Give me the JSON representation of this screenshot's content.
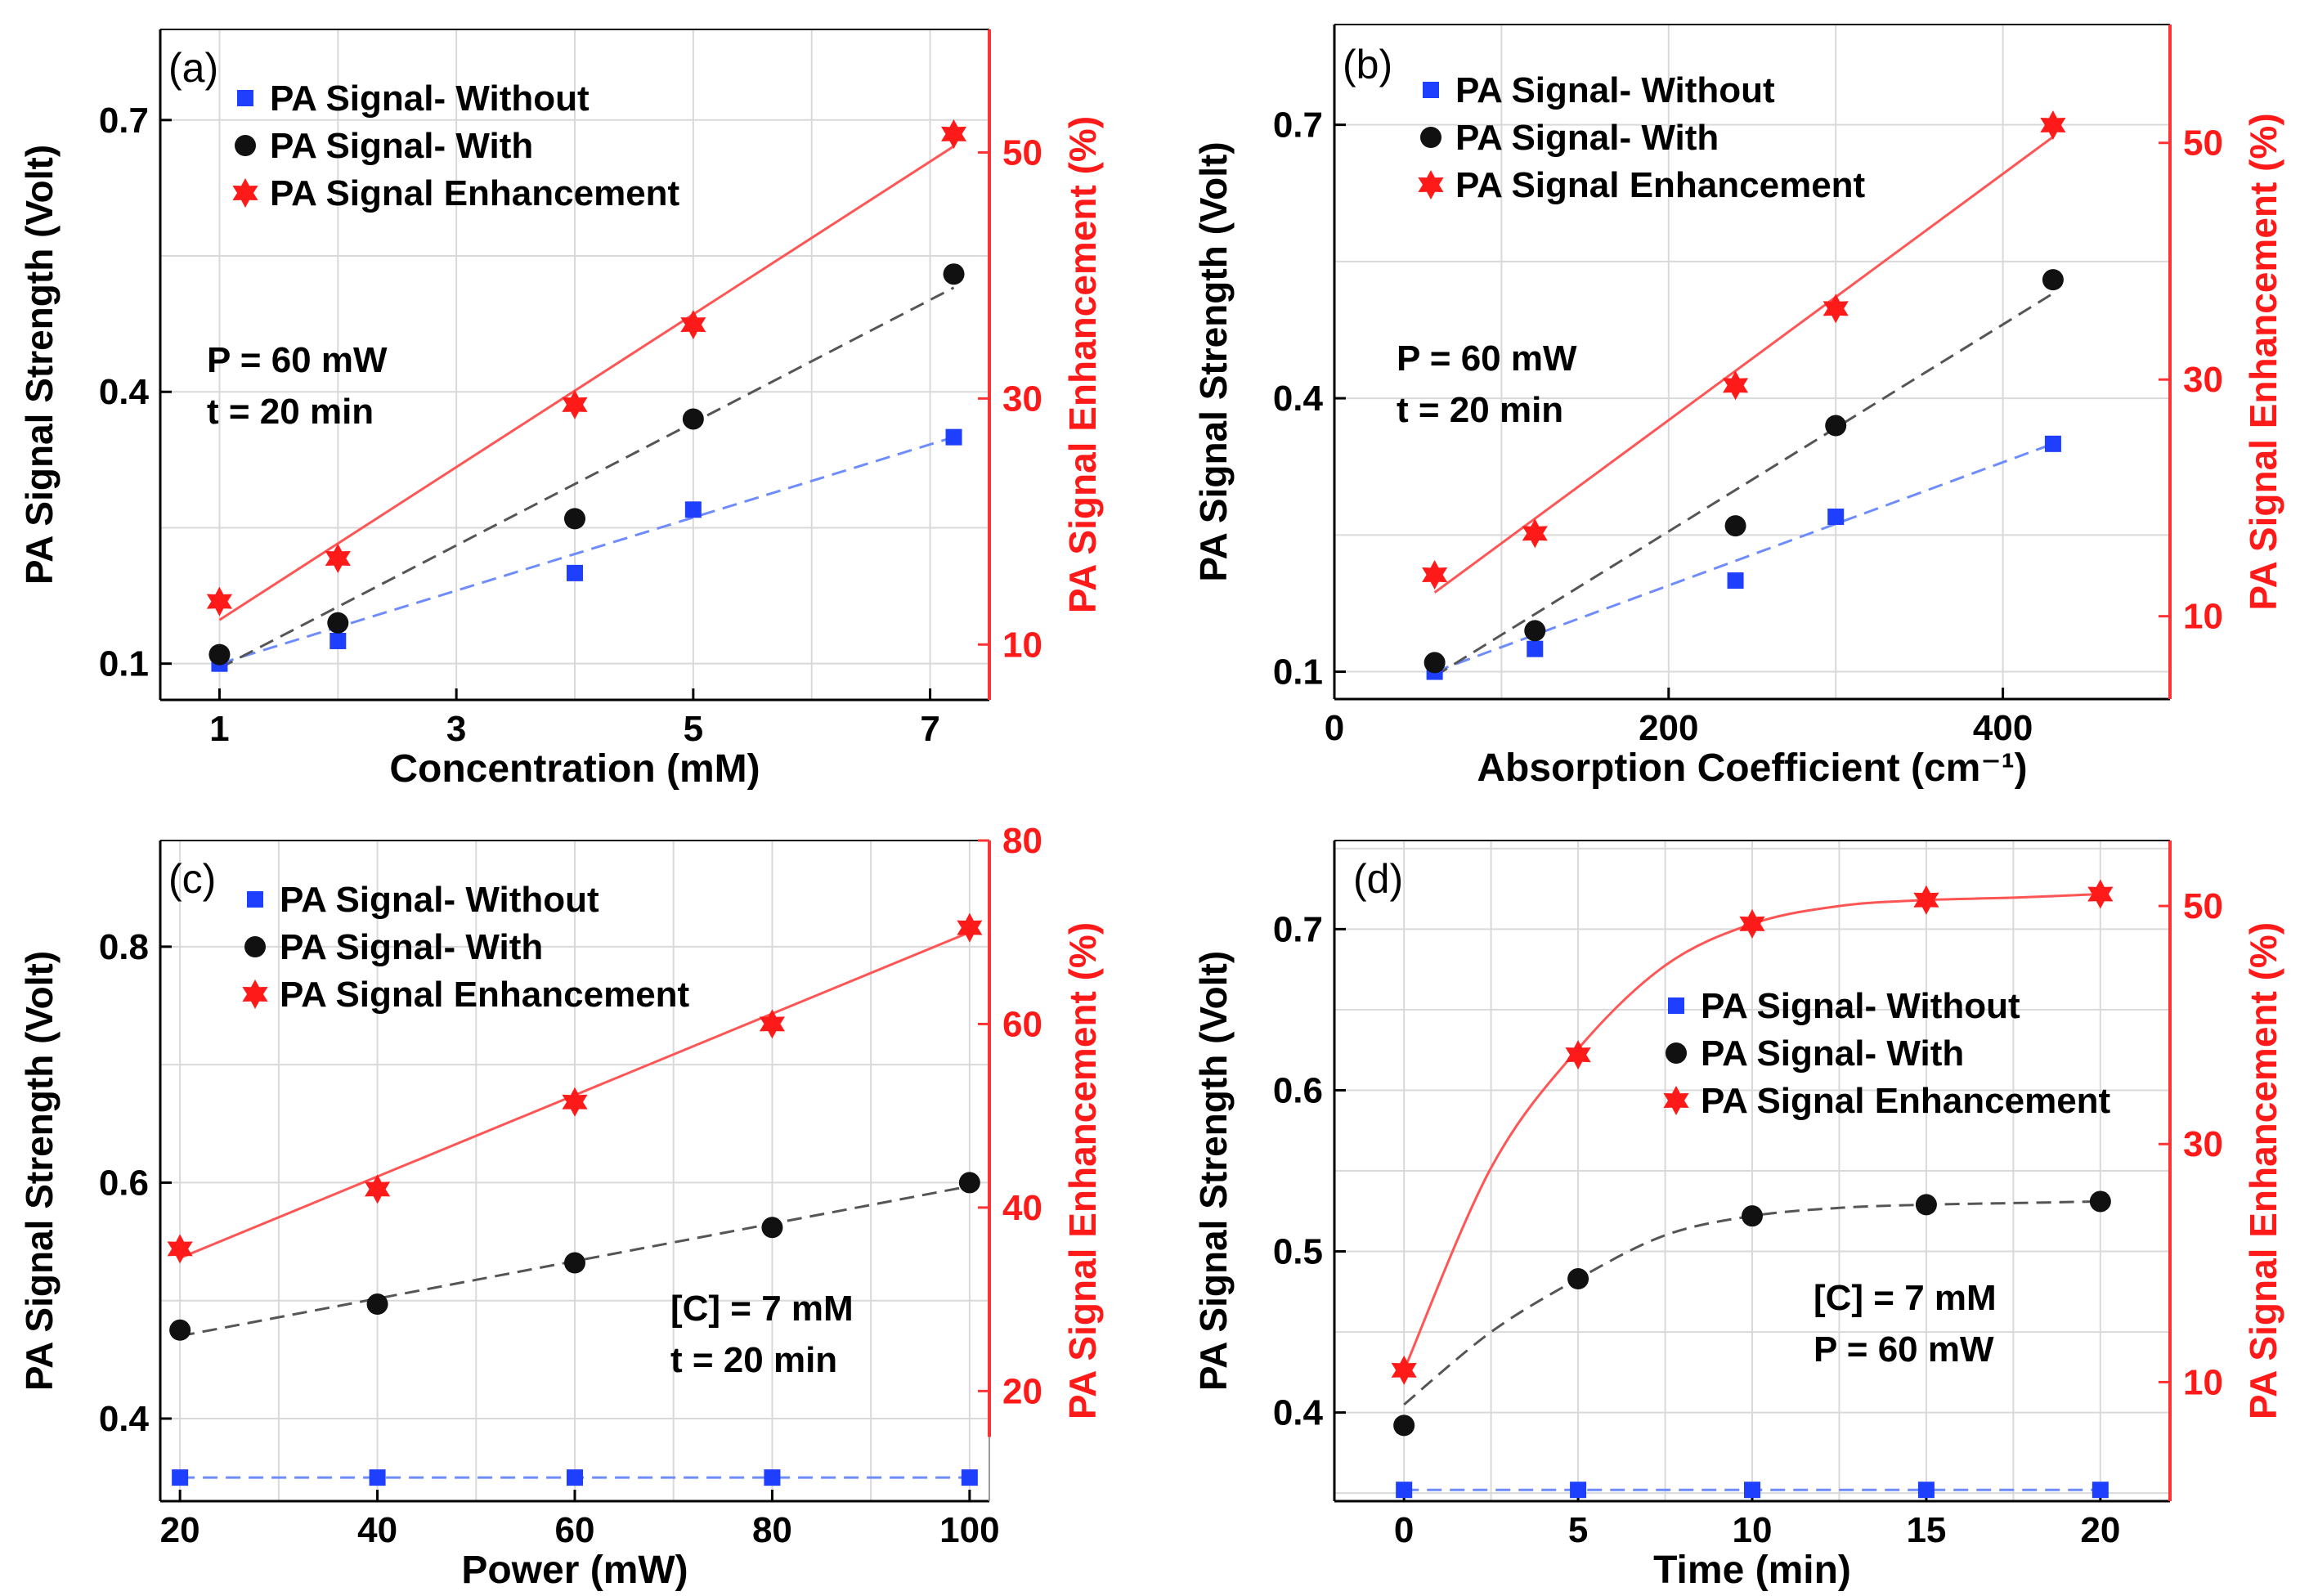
{
  "colors": {
    "without": "#1f3fff",
    "with": "#111111",
    "enhancement": "#ff1a1a",
    "axis": "#000000",
    "grid": "#d9d9d9",
    "right_axis": "#ff3333",
    "without_fit": "#6f8cff",
    "with_fit": "#555555",
    "enh_fit": "#ff5555"
  },
  "chart_data": [
    {
      "type": "scatter",
      "panel_label": "(a)",
      "xlabel": "Concentration (mM)",
      "ylabel": "PA Signal Strength (Volt)",
      "y2label": "PA Signal Enhancement (%)",
      "xlim": [
        0.5,
        7.5
      ],
      "ylim": [
        0.06,
        0.8
      ],
      "y2lim": [
        5.5,
        60
      ],
      "xticks": [
        1,
        3,
        5,
        7
      ],
      "xtick_labels": [
        "1",
        "3",
        "5",
        "7"
      ],
      "yticks": [
        0.1,
        0.4,
        0.7
      ],
      "ytick_labels": [
        "0.1",
        "0.4",
        "0.7"
      ],
      "y2ticks": [
        10,
        30,
        50
      ],
      "y2tick_labels": [
        "10",
        "30",
        "50"
      ],
      "y2_color_range": [
        5.5,
        60
      ],
      "annotation": [
        "P = 60 mW",
        "t = 20 min"
      ],
      "legend": [
        "PA Signal- Without",
        "PA Signal- With",
        "PA Signal Enhancement"
      ],
      "legend_position": "top-left",
      "series": [
        {
          "name": "PA Signal- Without",
          "axis": "left",
          "marker": "square",
          "x": [
            1,
            2,
            4,
            5,
            7.2
          ],
          "values": [
            0.1,
            0.125,
            0.2,
            0.27,
            0.35
          ]
        },
        {
          "name": "PA Signal- With",
          "axis": "left",
          "marker": "circle",
          "x": [
            1,
            2,
            4,
            5,
            7.2
          ],
          "values": [
            0.11,
            0.145,
            0.26,
            0.37,
            0.53
          ]
        },
        {
          "name": "PA Signal Enhancement",
          "axis": "right",
          "marker": "star",
          "x": [
            1,
            2,
            4,
            5,
            7.2
          ],
          "values": [
            13.5,
            17,
            29.5,
            36,
            51.5
          ]
        }
      ],
      "fits": [
        {
          "series": "PA Signal- Without",
          "axis": "left",
          "style": "dashed",
          "x": [
            1,
            7.2
          ],
          "values": [
            0.1,
            0.35
          ]
        },
        {
          "series": "PA Signal- With",
          "axis": "left",
          "style": "dashed",
          "x": [
            1,
            7.2
          ],
          "values": [
            0.095,
            0.515
          ]
        },
        {
          "series": "PA Signal Enhancement",
          "axis": "right",
          "style": "solid",
          "x": [
            1,
            7.2
          ],
          "values": [
            12,
            50.5
          ]
        }
      ]
    },
    {
      "type": "scatter",
      "panel_label": "(b)",
      "xlabel": "Absorption Coefficient (cm⁻¹)",
      "ylabel": "PA Signal Strength (Volt)",
      "y2label": "PA Signal Enhancement (%)",
      "xlim": [
        0,
        500
      ],
      "ylim": [
        0.07,
        0.81
      ],
      "y2lim": [
        3,
        60
      ],
      "xticks": [
        0,
        200,
        400
      ],
      "xtick_labels": [
        "0",
        "200",
        "400"
      ],
      "yticks": [
        0.1,
        0.4,
        0.7
      ],
      "ytick_labels": [
        "0.1",
        "0.4",
        "0.7"
      ],
      "y2ticks": [
        10,
        30,
        50
      ],
      "y2tick_labels": [
        "10",
        "30",
        "50"
      ],
      "y2_color_range": [
        3,
        60
      ],
      "annotation": [
        "P = 60 mW",
        "t = 20 min"
      ],
      "legend": [
        "PA Signal- Without",
        "PA Signal- With",
        "PA Signal Enhancement"
      ],
      "legend_position": "top-left",
      "series": [
        {
          "name": "PA Signal- Without",
          "axis": "left",
          "marker": "square",
          "x": [
            60,
            120,
            240,
            300,
            430
          ],
          "values": [
            0.1,
            0.125,
            0.2,
            0.27,
            0.35
          ]
        },
        {
          "name": "PA Signal- With",
          "axis": "left",
          "marker": "circle",
          "x": [
            60,
            120,
            240,
            300,
            430
          ],
          "values": [
            0.11,
            0.145,
            0.26,
            0.37,
            0.53
          ]
        },
        {
          "name": "PA Signal Enhancement",
          "axis": "right",
          "marker": "star",
          "x": [
            60,
            120,
            240,
            300,
            430
          ],
          "values": [
            13.5,
            17,
            29.5,
            36,
            51.5
          ]
        }
      ],
      "fits": [
        {
          "series": "PA Signal- Without",
          "axis": "left",
          "style": "dashed",
          "x": [
            60,
            430
          ],
          "values": [
            0.1,
            0.35
          ]
        },
        {
          "series": "PA Signal- With",
          "axis": "left",
          "style": "dashed",
          "x": [
            60,
            430
          ],
          "values": [
            0.095,
            0.515
          ]
        },
        {
          "series": "PA Signal Enhancement",
          "axis": "right",
          "style": "solid",
          "x": [
            60,
            430
          ],
          "values": [
            12,
            50.5
          ]
        }
      ]
    },
    {
      "type": "scatter",
      "panel_label": "(c)",
      "xlabel": "Power (mW)",
      "ylabel": "PA Signal Strength (Volt)",
      "y2label": "PA Signal Enhancement (%)",
      "xlim": [
        18,
        102
      ],
      "ylim": [
        0.33,
        0.89
      ],
      "y2lim": [
        8,
        80
      ],
      "xticks": [
        20,
        40,
        60,
        80,
        100
      ],
      "xtick_labels": [
        "20",
        "40",
        "60",
        "80",
        "100"
      ],
      "yticks": [
        0.4,
        0.6,
        0.8
      ],
      "ytick_labels": [
        "0.4",
        "0.6",
        "0.8"
      ],
      "y2ticks": [
        20,
        40,
        60,
        80
      ],
      "y2tick_labels": [
        "20",
        "40",
        "60",
        "80"
      ],
      "y2_color_range": [
        15,
        80
      ],
      "annotation": [
        "[C] = 7 mM",
        "t = 20 min"
      ],
      "legend": [
        "PA Signal- Without",
        "PA Signal- With",
        "PA Signal Enhancement"
      ],
      "legend_position": "top-left",
      "series": [
        {
          "name": "PA Signal- Without",
          "axis": "left",
          "marker": "square",
          "x": [
            20,
            40,
            60,
            80,
            100
          ],
          "values": [
            0.35,
            0.35,
            0.35,
            0.35,
            0.35
          ]
        },
        {
          "name": "PA Signal- With",
          "axis": "left",
          "marker": "circle",
          "x": [
            20,
            40,
            60,
            80,
            100
          ],
          "values": [
            0.475,
            0.497,
            0.532,
            0.562,
            0.6
          ]
        },
        {
          "name": "PA Signal Enhancement",
          "axis": "right",
          "marker": "star",
          "x": [
            20,
            40,
            60,
            80,
            100
          ],
          "values": [
            35.5,
            42,
            51.5,
            60,
            70.5
          ]
        }
      ],
      "fits": [
        {
          "series": "PA Signal- Without",
          "axis": "left",
          "style": "dashed",
          "x": [
            20,
            100
          ],
          "values": [
            0.35,
            0.35
          ]
        },
        {
          "series": "PA Signal- With",
          "axis": "left",
          "style": "dashed",
          "x": [
            20,
            100
          ],
          "values": [
            0.47,
            0.597
          ]
        },
        {
          "series": "PA Signal Enhancement",
          "axis": "right",
          "style": "solid",
          "x": [
            20,
            100
          ],
          "values": [
            34.5,
            70
          ]
        }
      ]
    },
    {
      "type": "scatter",
      "panel_label": "(d)",
      "xlabel": "Time (min)",
      "ylabel": "PA Signal Strength (Volt)",
      "y2label": "PA Signal Enhancement (%)",
      "xlim": [
        -2,
        22
      ],
      "ylim": [
        0.345,
        0.755
      ],
      "y2lim": [
        0,
        55.5
      ],
      "xticks": [
        0,
        5,
        10,
        15,
        20
      ],
      "xtick_labels": [
        "0",
        "5",
        "10",
        "15",
        "20"
      ],
      "yticks": [
        0.4,
        0.5,
        0.6,
        0.7
      ],
      "ytick_labels": [
        "0.4",
        "0.5",
        "0.6",
        "0.7"
      ],
      "y2ticks": [
        10,
        30,
        50
      ],
      "y2tick_labels": [
        "10",
        "30",
        "50"
      ],
      "y2_color_range": [
        0,
        55.5
      ],
      "annotation": [
        "[C] = 7 mM",
        "P = 60 mW"
      ],
      "legend": [
        "PA Signal- Without",
        "PA Signal- With",
        "PA Signal Enhancement"
      ],
      "legend_position": "center-right",
      "series": [
        {
          "name": "PA Signal- Without",
          "axis": "left",
          "marker": "square",
          "x": [
            0,
            5,
            10,
            15,
            20
          ],
          "values": [
            0.352,
            0.352,
            0.352,
            0.352,
            0.352
          ]
        },
        {
          "name": "PA Signal- With",
          "axis": "left",
          "marker": "circle",
          "x": [
            0,
            5,
            10,
            15,
            20
          ],
          "values": [
            0.392,
            0.483,
            0.522,
            0.529,
            0.531
          ]
        },
        {
          "name": "PA Signal Enhancement",
          "axis": "right",
          "marker": "star",
          "x": [
            0,
            5,
            10,
            15,
            20
          ],
          "values": [
            11,
            37.5,
            48.5,
            50.5,
            51
          ]
        }
      ],
      "fits": [
        {
          "series": "PA Signal- Without",
          "axis": "left",
          "style": "dashed",
          "x": [
            0,
            20
          ],
          "values": [
            0.352,
            0.352
          ]
        },
        {
          "series": "PA Signal- With",
          "axis": "left",
          "style": "dashed",
          "x": [
            0,
            2.5,
            5,
            7.5,
            10,
            12.5,
            15,
            17.5,
            20
          ],
          "values": [
            0.405,
            0.45,
            0.483,
            0.51,
            0.522,
            0.527,
            0.529,
            0.53,
            0.531
          ]
        },
        {
          "series": "PA Signal Enhancement",
          "axis": "right",
          "style": "solid",
          "x": [
            0,
            2.5,
            5,
            7.5,
            10,
            12.5,
            15,
            17.5,
            20
          ],
          "values": [
            11,
            28,
            38,
            45,
            48.5,
            50,
            50.5,
            50.7,
            51
          ]
        }
      ]
    }
  ]
}
